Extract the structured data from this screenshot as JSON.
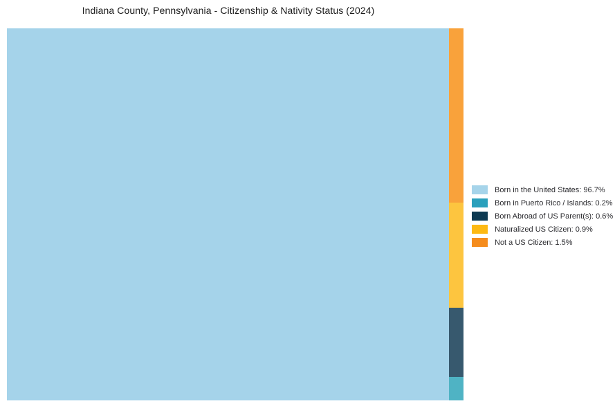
{
  "chart_data": {
    "type": "treemap",
    "title": "Indiana County, Pennsylvania - Citizenship & Nativity Status (2024)",
    "legend_position": "right",
    "total_percent": 99.9,
    "segments": [
      {
        "label": "Born in the United States",
        "value": 96.7,
        "unit": "%",
        "color": "#A5D3EA",
        "legend_color": "#A6D4EA",
        "legend_text": "Born in the United States: 96.7%"
      },
      {
        "label": "Born in Puerto Rico / Islands",
        "value": 0.2,
        "unit": "%",
        "color": "#4FB3C4",
        "legend_color": "#2AA0BC",
        "legend_text": "Born in Puerto Rico / Islands: 0.2%"
      },
      {
        "label": "Born Abroad of US Parent(s)",
        "value": 0.6,
        "unit": "%",
        "color": "#37596E",
        "legend_color": "#0E3A52",
        "legend_text": "Born Abroad of US Parent(s): 0.6%"
      },
      {
        "label": "Naturalized US Citizen",
        "value": 0.9,
        "unit": "%",
        "color": "#FDC53F",
        "legend_color": "#FDB913",
        "legend_text": "Naturalized US Citizen: 0.9%"
      },
      {
        "label": "Not a US Citizen",
        "value": 1.5,
        "unit": "%",
        "color": "#F9A23B",
        "legend_color": "#F58C1D",
        "legend_text": "Not a US Citizen: 1.5%"
      }
    ]
  }
}
